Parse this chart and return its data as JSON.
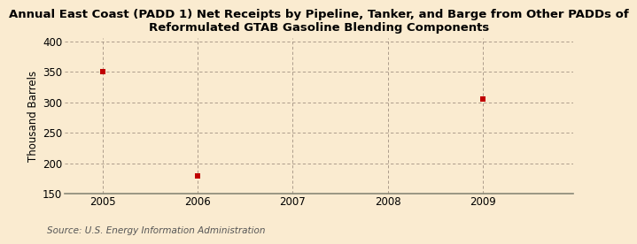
{
  "title": "Annual East Coast (PADD 1) Net Receipts by Pipeline, Tanker, and Barge from Other PADDs of\nReformulated GTAB Gasoline Blending Components",
  "ylabel": "Thousand Barrels",
  "source": "Source: U.S. Energy Information Administration",
  "x_data": [
    2005,
    2006,
    2009
  ],
  "y_data": [
    350,
    179,
    305
  ],
  "marker_color": "#c00000",
  "marker": "s",
  "marker_size": 4,
  "xlim": [
    2004.6,
    2009.95
  ],
  "ylim": [
    150,
    405
  ],
  "yticks": [
    150,
    200,
    250,
    300,
    350,
    400
  ],
  "xticks": [
    2005,
    2006,
    2007,
    2008,
    2009
  ],
  "background_color": "#faebd0",
  "grid_color": "#a09080",
  "title_fontsize": 9.5,
  "label_fontsize": 8.5,
  "tick_fontsize": 8.5,
  "source_fontsize": 7.5
}
